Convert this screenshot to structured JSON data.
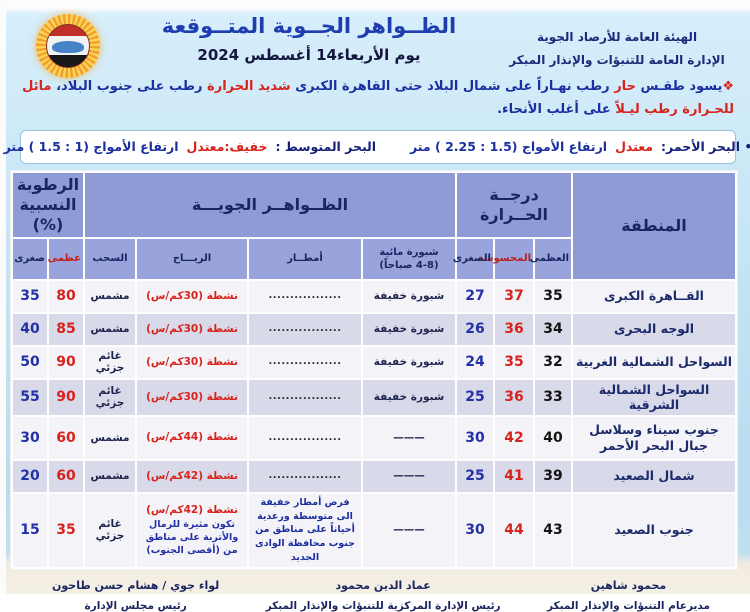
{
  "header": {
    "title": "الظــواهر الجــوية المتــوقعة",
    "date": "يوم الأربعاء14 أغسطس 2024",
    "org_line1": "الهيئة العامة للأرصاد الجوية",
    "org_line2": "الإدارة العامة للتنبؤات والإنذار المبكر"
  },
  "summary": {
    "bullet": "❖",
    "p1": "يسود طقـس ",
    "p2": "حار ",
    "p3": "رطب نهـاراً على شمال البلاد حتى القاهرة الكبرى ",
    "p4": "شديد الحرارة ",
    "p5": "رطب على جنوب البلاد، ",
    "p6": "مائل للحـرارة رطب ليـلاً ",
    "p7": "على أغلب الأنحاء."
  },
  "sea_state": {
    "red_sea_label": "• البحر الأحمر:",
    "red_sea_state": "معتدل",
    "red_sea_waves": "ارتفاع الأمواج (1.5 : 2.25 ) متر",
    "med_label": "البحر المتوسط :",
    "med_state": "خفيف:معتدل",
    "med_waves": "ارتفاع الأمواج (1 : 1.5 ) متر"
  },
  "table": {
    "headers": {
      "region": "المنطقة",
      "temp_l1": "درجــة",
      "temp_l2": "الحــرارة",
      "phenomena": "الظــواهــر الجويـــة",
      "humidity_l1": "الرطوبة",
      "humidity_l2": "النسبية (%)",
      "t_max": "العظمى",
      "t_feel": "المحسوسة",
      "t_min": "الصغرى",
      "fog_l1": "شبورة مائية",
      "fog_l2": "(4-8 صباحاً)",
      "rain": "أمطــار",
      "wind": "الريـــاح",
      "clouds": "السحب",
      "hum_max": "عظمى",
      "hum_min": "صغرى"
    },
    "rows": [
      {
        "region": "القــاهرة الكبرى",
        "t_max": "35",
        "t_feel": "37",
        "t_min": "27",
        "fog": "شبورة خفيفة",
        "rain": ".................",
        "wind": "نشطة (30كم/س)",
        "clouds": "مشمس",
        "hum_max": "80",
        "hum_min": "35"
      },
      {
        "region": "الوجه البحرى",
        "t_max": "34",
        "t_feel": "36",
        "t_min": "26",
        "fog": "شبورة خفيفة",
        "rain": ".................",
        "wind": "نشطة (30كم/س)",
        "clouds": "مشمس",
        "hum_max": "85",
        "hum_min": "40"
      },
      {
        "region": "السواحل الشمالية الغربية",
        "t_max": "32",
        "t_feel": "35",
        "t_min": "24",
        "fog": "شبورة خفيفة",
        "rain": ".................",
        "wind": "نشطة (30كم/س)",
        "clouds": "غائم جزئي",
        "hum_max": "90",
        "hum_min": "50"
      },
      {
        "region": "السواحل الشمالية الشرقية",
        "t_max": "33",
        "t_feel": "36",
        "t_min": "25",
        "fog": "شبورة خفيفة",
        "rain": ".................",
        "wind": "نشطة (30كم/س)",
        "clouds": "غائم جزئي",
        "hum_max": "90",
        "hum_min": "55"
      },
      {
        "region": "جنوب سيناء وسلاسل جبال البحر الأحمر",
        "t_max": "40",
        "t_feel": "42",
        "t_min": "30",
        "fog": "———",
        "rain": ".................",
        "wind": "نشطة (44كم/س)",
        "clouds": "مشمس",
        "hum_max": "60",
        "hum_min": "30"
      },
      {
        "region": "شمال الصعيد",
        "t_max": "39",
        "t_feel": "41",
        "t_min": "25",
        "fog": "———",
        "rain": ".................",
        "wind": "نشطة (42كم/س)",
        "clouds": "مشمس",
        "hum_max": "60",
        "hum_min": "20"
      },
      {
        "region": "جنوب الصعيد",
        "t_max": "43",
        "t_feel": "44",
        "t_min": "30",
        "fog": "———",
        "rain": "فرص أمطار خفيفة الى متوسطة ورعدية أحياناً على مناطق من جنوب محافظة الوادى الجديد",
        "wind": "نشطة (42كم/س)",
        "wind_note": "تكون مثيرة للرمال والأتربة على مناطق من (أقصى الجنوب)",
        "clouds": "غائم جزئي",
        "hum_max": "35",
        "hum_min": "15"
      }
    ]
  },
  "footer": {
    "signatures": [
      {
        "name": "محمود شاهين",
        "title": "مديرعام التنبؤات والإنذار المبكر"
      },
      {
        "name": "عماد الدين محمود",
        "title": "رئيس الإدارة المركزية للتنبؤات والإنذار المبكر"
      },
      {
        "name": "لواء جوي / هشام حسن طاحون",
        "title": "رئيس مجلس الإدارة"
      }
    ]
  },
  "colors": {
    "accent_red": "#d8231d",
    "navy": "#1b2560",
    "title_blue": "#1d3db0",
    "header_bg": "#8e9bd6",
    "row_alt_bg": "#d8d9e9",
    "page_bg": "#c6e5f5"
  }
}
